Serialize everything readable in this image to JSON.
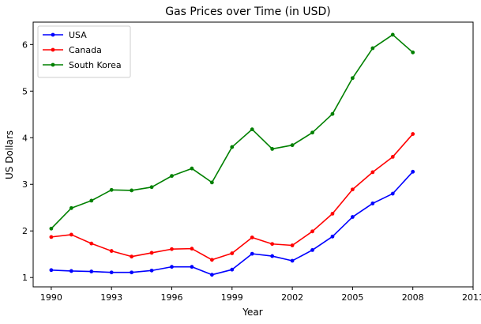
{
  "chart_data": {
    "type": "line",
    "title": "Gas Prices over Time (in USD)",
    "xlabel": "Year",
    "ylabel": "US Dollars",
    "x": [
      1990,
      1991,
      1992,
      1993,
      1994,
      1995,
      1996,
      1997,
      1998,
      1999,
      2000,
      2001,
      2002,
      2003,
      2004,
      2005,
      2006,
      2007,
      2008
    ],
    "xlim": [
      1989.1,
      2011
    ],
    "ylim": [
      0.8,
      6.48
    ],
    "xticks": [
      1990,
      1993,
      1996,
      1999,
      2002,
      2005,
      2008,
      2011
    ],
    "yticks": [
      1,
      2,
      3,
      4,
      5,
      6
    ],
    "grid": false,
    "legend_position": "upper-left",
    "series": [
      {
        "name": "USA",
        "color": "#0000ff",
        "values": [
          1.16,
          1.14,
          1.13,
          1.11,
          1.11,
          1.15,
          1.23,
          1.23,
          1.06,
          1.17,
          1.51,
          1.46,
          1.36,
          1.59,
          1.88,
          2.3,
          2.59,
          2.8,
          3.27
        ]
      },
      {
        "name": "Canada",
        "color": "#ff0000",
        "values": [
          1.87,
          1.92,
          1.73,
          1.57,
          1.45,
          1.53,
          1.61,
          1.62,
          1.38,
          1.52,
          1.86,
          1.72,
          1.69,
          1.99,
          2.37,
          2.89,
          3.26,
          3.59,
          4.08
        ]
      },
      {
        "name": "South Korea",
        "color": "#008000",
        "values": [
          2.05,
          2.49,
          2.65,
          2.88,
          2.87,
          2.94,
          3.18,
          3.34,
          3.04,
          3.8,
          4.18,
          3.76,
          3.84,
          4.11,
          4.51,
          5.28,
          5.92,
          6.21,
          5.83
        ]
      }
    ]
  }
}
